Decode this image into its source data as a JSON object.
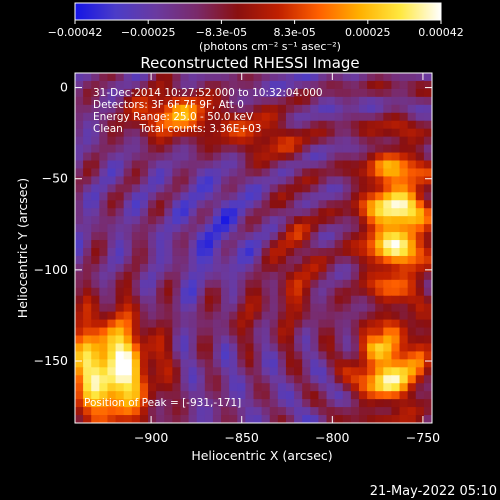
{
  "colorbar": {
    "ticks": [
      "-0.00042",
      "-0.00025",
      "-8.3e-05",
      "8.3e-05",
      "0.00025",
      "0.00042"
    ],
    "units": "(photons cm⁻² s⁻¹ asec⁻²)"
  },
  "footer": {
    "timestamp": "21-May-2022 05:10"
  },
  "chart_data": {
    "type": "heatmap",
    "title": "Reconstructed RHESSI Image",
    "xlabel": "Heliocentric X (arcsec)",
    "ylabel": "Heliocentric Y (arcsec)",
    "xlim": [
      -942,
      -745
    ],
    "ylim": [
      -184,
      8
    ],
    "x_ticks": [
      {
        "value": -900,
        "label": "−900"
      },
      {
        "value": -850,
        "label": "−850"
      },
      {
        "value": -800,
        "label": "−800"
      },
      {
        "value": -750,
        "label": "−750"
      }
    ],
    "y_ticks": [
      {
        "value": 0,
        "label": "0"
      },
      {
        "value": -50,
        "label": "−50"
      },
      {
        "value": -100,
        "label": "−100"
      },
      {
        "value": -150,
        "label": "−150"
      }
    ],
    "annotations": [
      "31-Dec-2014 10:27:52.000 to 10:32:04.000",
      "Detectors: 3F 6F 7F 9F, Att 0",
      "Energy Range: 25.0 - 50.0 keV",
      "Clean     Total counts: 3.36E+03"
    ],
    "peak_label": "Position of Peak = [-931,-171]",
    "value_range": [
      -0.00042,
      0.00042
    ],
    "colors": {
      "stops": [
        "#1414e6",
        "#4b3cc8",
        "#6a3aa0",
        "#7a2a6a",
        "#8a1010",
        "#c02000",
        "#ff6000",
        "#ffb000",
        "#ffe840",
        "#ffffff"
      ]
    }
  }
}
